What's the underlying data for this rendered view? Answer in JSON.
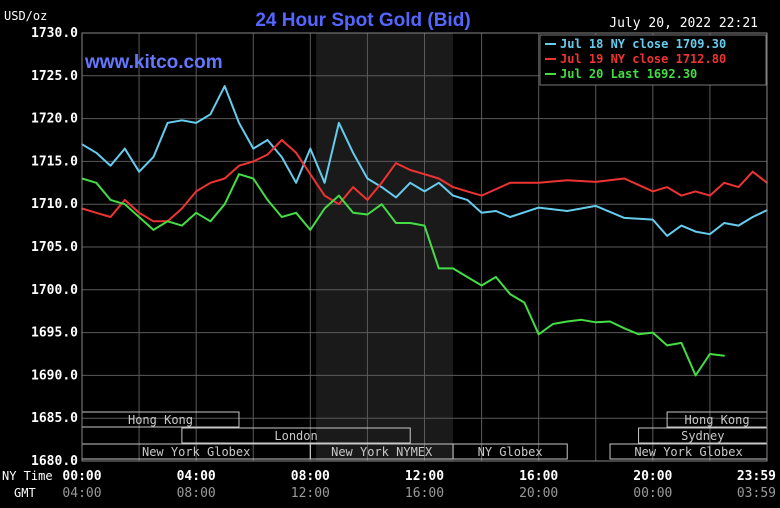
{
  "chart_data": {
    "type": "line",
    "title": "24 Hour Spot Gold (Bid)",
    "watermark": "www.kitco.com",
    "timestamp": "July 20, 2022 22:21",
    "y_unit_label": "USD/oz",
    "ylim": [
      1680,
      1730
    ],
    "y_ticks": [
      "1730.0",
      "1725.0",
      "1720.0",
      "1715.0",
      "1710.0",
      "1705.0",
      "1700.0",
      "1695.0",
      "1690.0",
      "1685.0",
      "1680.0"
    ],
    "xlim": [
      0,
      24
    ],
    "x_row_labels": {
      "ny": "NY Time",
      "gmt": "GMT"
    },
    "x_ticks_ny": [
      "00:00",
      "04:00",
      "08:00",
      "12:00",
      "16:00",
      "20:00",
      "23:59"
    ],
    "x_ticks_gmt": [
      "04:00",
      "08:00",
      "12:00",
      "16:00",
      "20:00",
      "00:00",
      "03:59"
    ],
    "grid": true,
    "legend_position": "top-right",
    "colors": {
      "background": "#000000",
      "plot_bg": "#000000",
      "shade": "#1a1a1a",
      "grid": "#5a5a5a",
      "axis_text": "#ffffff",
      "title": "#5566ff",
      "watermark": "#6677ff",
      "session_box": "#c8c8c8"
    },
    "sessions": [
      {
        "label": "Hong Kong",
        "row": 0,
        "start": 0.0,
        "end": 5.5
      },
      {
        "label": "Hong Kong",
        "row": 0,
        "start": 20.5,
        "end": 24.0
      },
      {
        "label": "London",
        "row": 1,
        "start": 3.5,
        "end": 11.5
      },
      {
        "label": "Sydney",
        "row": 1,
        "start": 19.5,
        "end": 24.0
      },
      {
        "label": "New York Globex",
        "row": 2,
        "start": 0.0,
        "end": 8.0
      },
      {
        "label": "New York NYMEX",
        "row": 2,
        "start": 8.0,
        "end": 13.0
      },
      {
        "label": "NY Globex",
        "row": 2,
        "start": 13.0,
        "end": 17.0
      },
      {
        "label": "New York Globex",
        "row": 2,
        "start": 18.5,
        "end": 24.0
      }
    ],
    "shaded_hours": [
      8.2,
      13.0
    ],
    "series": [
      {
        "name": "Jul 18 NY close 1709.30",
        "color": "#66ccee",
        "x": [
          0,
          0.5,
          1,
          1.5,
          2,
          2.5,
          3,
          3.5,
          4,
          4.5,
          5,
          5.5,
          6,
          6.5,
          7,
          7.5,
          8,
          8.5,
          9,
          9.5,
          10,
          10.5,
          11,
          11.5,
          12,
          12.5,
          13,
          13.5,
          14,
          14.5,
          15,
          16,
          17,
          18,
          19,
          20,
          20.5,
          21,
          21.5,
          22,
          22.5,
          23,
          23.5,
          24
        ],
        "y": [
          1717,
          1716,
          1714.5,
          1716.5,
          1713.8,
          1715.5,
          1719.5,
          1719.8,
          1719.5,
          1720.5,
          1723.8,
          1719.5,
          1716.5,
          1717.5,
          1715.5,
          1712.5,
          1716.5,
          1712.5,
          1719.5,
          1716,
          1713,
          1712,
          1710.8,
          1712.5,
          1711.5,
          1712.5,
          1711,
          1710.5,
          1709,
          1709.2,
          1708.5,
          1709.6,
          1709.2,
          1709.8,
          1708.4,
          1708.2,
          1706.3,
          1707.5,
          1706.8,
          1706.5,
          1707.8,
          1707.5,
          1708.5,
          1709.3
        ]
      },
      {
        "name": "Jul 19 NY close 1712.80",
        "color": "#ee3333",
        "x": [
          0,
          0.5,
          1,
          1.5,
          2,
          2.5,
          3,
          3.5,
          4,
          4.5,
          5,
          5.5,
          6,
          6.5,
          7,
          7.5,
          8,
          8.5,
          9,
          9.5,
          10,
          10.5,
          11,
          11.5,
          12,
          12.5,
          13,
          13.5,
          14,
          15,
          16,
          17,
          18,
          19,
          20,
          20.5,
          21,
          21.5,
          22,
          22.5,
          23,
          23.5,
          24
        ],
        "y": [
          1709.5,
          1709,
          1708.5,
          1710.5,
          1709,
          1708,
          1708,
          1709.5,
          1711.5,
          1712.5,
          1713,
          1714.5,
          1715,
          1715.8,
          1717.5,
          1716,
          1713.5,
          1711,
          1710,
          1712,
          1710.5,
          1712.5,
          1714.8,
          1714,
          1713.5,
          1713,
          1712,
          1711.5,
          1711,
          1712.5,
          1712.5,
          1712.8,
          1712.6,
          1713,
          1711.5,
          1712,
          1711,
          1711.5,
          1711,
          1712.5,
          1712,
          1713.8,
          1712.5
        ]
      },
      {
        "name": "Jul 20 Last 1692.30",
        "color": "#44dd44",
        "x": [
          0,
          0.5,
          1,
          1.5,
          2,
          2.5,
          3,
          3.5,
          4,
          4.5,
          5,
          5.5,
          6,
          6.5,
          7,
          7.5,
          8,
          8.5,
          9,
          9.5,
          10,
          10.5,
          11,
          11.5,
          12,
          12.5,
          13,
          13.5,
          14,
          14.5,
          15,
          15.5,
          16,
          16.5,
          17,
          17.5,
          18,
          18.5,
          19,
          19.5,
          20,
          20.5,
          21,
          21.5,
          22,
          22.5
        ],
        "y": [
          1713,
          1712.5,
          1710.5,
          1710,
          1708.5,
          1707,
          1708,
          1707.5,
          1709,
          1708,
          1710,
          1713.5,
          1713,
          1710.5,
          1708.5,
          1709,
          1707,
          1709.5,
          1711,
          1709,
          1708.8,
          1710,
          1707.8,
          1707.8,
          1707.5,
          1702.5,
          1702.5,
          1701.5,
          1700.5,
          1701.5,
          1699.5,
          1698.5,
          1694.8,
          1696,
          1696.3,
          1696.5,
          1696.2,
          1696.3,
          1695.5,
          1694.8,
          1695,
          1693.5,
          1693.8,
          1690,
          1692.5,
          1692.3
        ]
      }
    ]
  }
}
